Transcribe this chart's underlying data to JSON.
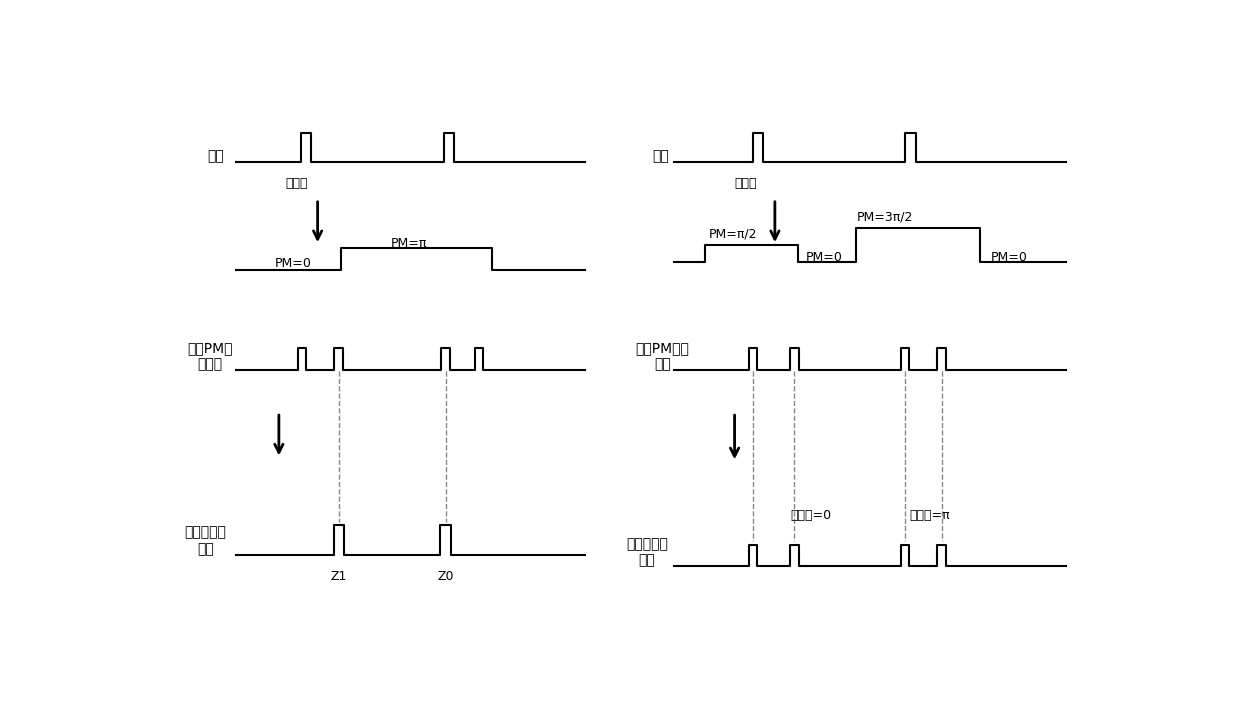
{
  "bg_color": "#ffffff",
  "line_color": "#000000",
  "dashed_color": "#888888",
  "font_size_label": 10,
  "font_size_small": 9,
  "left_panel": {
    "title_label": "光源",
    "subtitle_label": "周期光",
    "pm_label1": "PM=0",
    "pm_label2": "PM=π",
    "pulse_label": "到达PM的\n光脉冲",
    "output_label": "时间基矢编\n码光",
    "z1_label": "Z1",
    "z0_label": "Z0"
  },
  "right_panel": {
    "title_label": "光源",
    "subtitle_label": "周期光",
    "pm_label1": "PM=π/2",
    "pm_label2": "PM=3π/2",
    "pm_label3": "PM=0",
    "pm_label4": "PM=0",
    "pulse_label": "到达PM的光\n脉冲",
    "output_label": "相位基矢编\n码光",
    "phase_label1": "相位差=0",
    "phase_label2": "相位差=π"
  }
}
